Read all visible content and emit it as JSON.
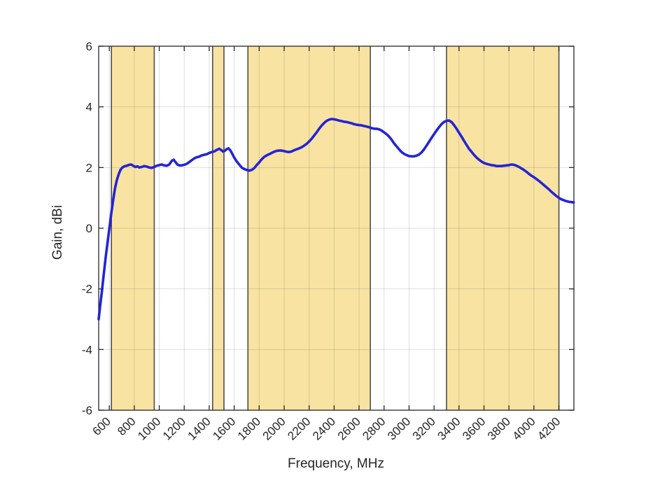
{
  "chart_data": {
    "type": "line",
    "title": "",
    "xlabel": "Frequency, MHz",
    "ylabel": "Gain, dBi",
    "xlim": [
      515,
      4320
    ],
    "ylim": [
      -6,
      6
    ],
    "xticks": [
      600,
      800,
      1000,
      1200,
      1400,
      1600,
      1800,
      2000,
      2200,
      2400,
      2600,
      2800,
      3000,
      3200,
      3400,
      3600,
      3800,
      4000,
      4200
    ],
    "yticks": [
      -6,
      -4,
      -2,
      0,
      2,
      4,
      6
    ],
    "grid": true,
    "legend": null,
    "x_tick_rotation_deg": 45,
    "highlight_bands_mhz": [
      {
        "start": 617,
        "end": 960
      },
      {
        "start": 1427,
        "end": 1518
      },
      {
        "start": 1710,
        "end": 2690
      },
      {
        "start": 3300,
        "end": 4200
      }
    ],
    "colors": {
      "line": "#2424d6",
      "band_fill": "#f8e3a2",
      "band_edge": "#4d4d4d",
      "grid": "rgba(38,38,38,0.15)",
      "axis": "#262626",
      "text": "#262626",
      "background": "#ffffff"
    },
    "series": [
      {
        "name": "gain",
        "points": [
          [
            515,
            -3.0
          ],
          [
            525,
            -2.62
          ],
          [
            540,
            -2.1
          ],
          [
            555,
            -1.55
          ],
          [
            570,
            -1.0
          ],
          [
            585,
            -0.5
          ],
          [
            600,
            -0.02
          ],
          [
            615,
            0.45
          ],
          [
            630,
            0.9
          ],
          [
            645,
            1.3
          ],
          [
            660,
            1.58
          ],
          [
            675,
            1.78
          ],
          [
            690,
            1.93
          ],
          [
            705,
            2.0
          ],
          [
            720,
            2.04
          ],
          [
            740,
            2.06
          ],
          [
            760,
            2.09
          ],
          [
            775,
            2.1
          ],
          [
            790,
            2.06
          ],
          [
            810,
            2.02
          ],
          [
            825,
            2.04
          ],
          [
            840,
            2.0
          ],
          [
            860,
            2.02
          ],
          [
            880,
            2.05
          ],
          [
            900,
            2.03
          ],
          [
            920,
            2.0
          ],
          [
            940,
            1.99
          ],
          [
            960,
            2.02
          ],
          [
            980,
            2.06
          ],
          [
            1000,
            2.08
          ],
          [
            1020,
            2.1
          ],
          [
            1040,
            2.07
          ],
          [
            1060,
            2.06
          ],
          [
            1080,
            2.1
          ],
          [
            1100,
            2.22
          ],
          [
            1115,
            2.26
          ],
          [
            1130,
            2.18
          ],
          [
            1145,
            2.1
          ],
          [
            1160,
            2.07
          ],
          [
            1180,
            2.07
          ],
          [
            1200,
            2.09
          ],
          [
            1220,
            2.12
          ],
          [
            1240,
            2.18
          ],
          [
            1260,
            2.24
          ],
          [
            1280,
            2.3
          ],
          [
            1300,
            2.34
          ],
          [
            1320,
            2.36
          ],
          [
            1340,
            2.4
          ],
          [
            1360,
            2.42
          ],
          [
            1380,
            2.44
          ],
          [
            1400,
            2.48
          ],
          [
            1420,
            2.51
          ],
          [
            1440,
            2.53
          ],
          [
            1460,
            2.58
          ],
          [
            1480,
            2.62
          ],
          [
            1495,
            2.58
          ],
          [
            1510,
            2.53
          ],
          [
            1525,
            2.55
          ],
          [
            1540,
            2.61
          ],
          [
            1555,
            2.63
          ],
          [
            1570,
            2.56
          ],
          [
            1585,
            2.45
          ],
          [
            1600,
            2.33
          ],
          [
            1620,
            2.2
          ],
          [
            1640,
            2.1
          ],
          [
            1660,
            2.0
          ],
          [
            1680,
            1.95
          ],
          [
            1700,
            1.92
          ],
          [
            1720,
            1.9
          ],
          [
            1740,
            1.92
          ],
          [
            1760,
            1.98
          ],
          [
            1780,
            2.08
          ],
          [
            1800,
            2.17
          ],
          [
            1820,
            2.27
          ],
          [
            1840,
            2.35
          ],
          [
            1860,
            2.4
          ],
          [
            1880,
            2.44
          ],
          [
            1900,
            2.48
          ],
          [
            1920,
            2.52
          ],
          [
            1940,
            2.55
          ],
          [
            1960,
            2.56
          ],
          [
            1980,
            2.56
          ],
          [
            2000,
            2.54
          ],
          [
            2020,
            2.52
          ],
          [
            2040,
            2.51
          ],
          [
            2060,
            2.53
          ],
          [
            2080,
            2.57
          ],
          [
            2100,
            2.6
          ],
          [
            2120,
            2.63
          ],
          [
            2140,
            2.67
          ],
          [
            2160,
            2.72
          ],
          [
            2180,
            2.78
          ],
          [
            2200,
            2.86
          ],
          [
            2220,
            2.95
          ],
          [
            2240,
            3.05
          ],
          [
            2260,
            3.16
          ],
          [
            2280,
            3.28
          ],
          [
            2300,
            3.38
          ],
          [
            2320,
            3.47
          ],
          [
            2340,
            3.54
          ],
          [
            2360,
            3.58
          ],
          [
            2380,
            3.6
          ],
          [
            2400,
            3.59
          ],
          [
            2420,
            3.57
          ],
          [
            2440,
            3.55
          ],
          [
            2460,
            3.53
          ],
          [
            2480,
            3.51
          ],
          [
            2500,
            3.5
          ],
          [
            2520,
            3.48
          ],
          [
            2540,
            3.46
          ],
          [
            2560,
            3.43
          ],
          [
            2580,
            3.41
          ],
          [
            2600,
            3.4
          ],
          [
            2620,
            3.39
          ],
          [
            2640,
            3.37
          ],
          [
            2660,
            3.35
          ],
          [
            2680,
            3.33
          ],
          [
            2700,
            3.3
          ],
          [
            2720,
            3.28
          ],
          [
            2740,
            3.28
          ],
          [
            2760,
            3.26
          ],
          [
            2780,
            3.22
          ],
          [
            2800,
            3.16
          ],
          [
            2820,
            3.1
          ],
          [
            2840,
            3.02
          ],
          [
            2860,
            2.92
          ],
          [
            2880,
            2.8
          ],
          [
            2900,
            2.7
          ],
          [
            2920,
            2.6
          ],
          [
            2940,
            2.51
          ],
          [
            2960,
            2.45
          ],
          [
            2980,
            2.41
          ],
          [
            3000,
            2.38
          ],
          [
            3020,
            2.37
          ],
          [
            3040,
            2.37
          ],
          [
            3060,
            2.39
          ],
          [
            3080,
            2.43
          ],
          [
            3100,
            2.5
          ],
          [
            3120,
            2.6
          ],
          [
            3140,
            2.72
          ],
          [
            3160,
            2.85
          ],
          [
            3180,
            2.98
          ],
          [
            3200,
            3.1
          ],
          [
            3220,
            3.22
          ],
          [
            3240,
            3.33
          ],
          [
            3260,
            3.43
          ],
          [
            3280,
            3.5
          ],
          [
            3300,
            3.54
          ],
          [
            3320,
            3.55
          ],
          [
            3340,
            3.5
          ],
          [
            3360,
            3.4
          ],
          [
            3380,
            3.28
          ],
          [
            3400,
            3.15
          ],
          [
            3420,
            3.02
          ],
          [
            3440,
            2.88
          ],
          [
            3460,
            2.75
          ],
          [
            3480,
            2.62
          ],
          [
            3500,
            2.52
          ],
          [
            3520,
            2.42
          ],
          [
            3540,
            2.33
          ],
          [
            3560,
            2.26
          ],
          [
            3580,
            2.2
          ],
          [
            3600,
            2.15
          ],
          [
            3620,
            2.12
          ],
          [
            3640,
            2.1
          ],
          [
            3660,
            2.08
          ],
          [
            3680,
            2.07
          ],
          [
            3700,
            2.05
          ],
          [
            3720,
            2.05
          ],
          [
            3740,
            2.05
          ],
          [
            3760,
            2.06
          ],
          [
            3780,
            2.07
          ],
          [
            3800,
            2.08
          ],
          [
            3820,
            2.1
          ],
          [
            3840,
            2.09
          ],
          [
            3860,
            2.06
          ],
          [
            3880,
            2.02
          ],
          [
            3900,
            1.97
          ],
          [
            3920,
            1.92
          ],
          [
            3940,
            1.86
          ],
          [
            3960,
            1.79
          ],
          [
            3980,
            1.73
          ],
          [
            4000,
            1.68
          ],
          [
            4020,
            1.62
          ],
          [
            4040,
            1.56
          ],
          [
            4060,
            1.49
          ],
          [
            4080,
            1.42
          ],
          [
            4100,
            1.35
          ],
          [
            4120,
            1.28
          ],
          [
            4140,
            1.2
          ],
          [
            4160,
            1.13
          ],
          [
            4180,
            1.06
          ],
          [
            4200,
            1.0
          ],
          [
            4220,
            0.95
          ],
          [
            4240,
            0.92
          ],
          [
            4260,
            0.89
          ],
          [
            4280,
            0.87
          ],
          [
            4300,
            0.86
          ],
          [
            4318,
            0.85
          ]
        ]
      }
    ]
  }
}
